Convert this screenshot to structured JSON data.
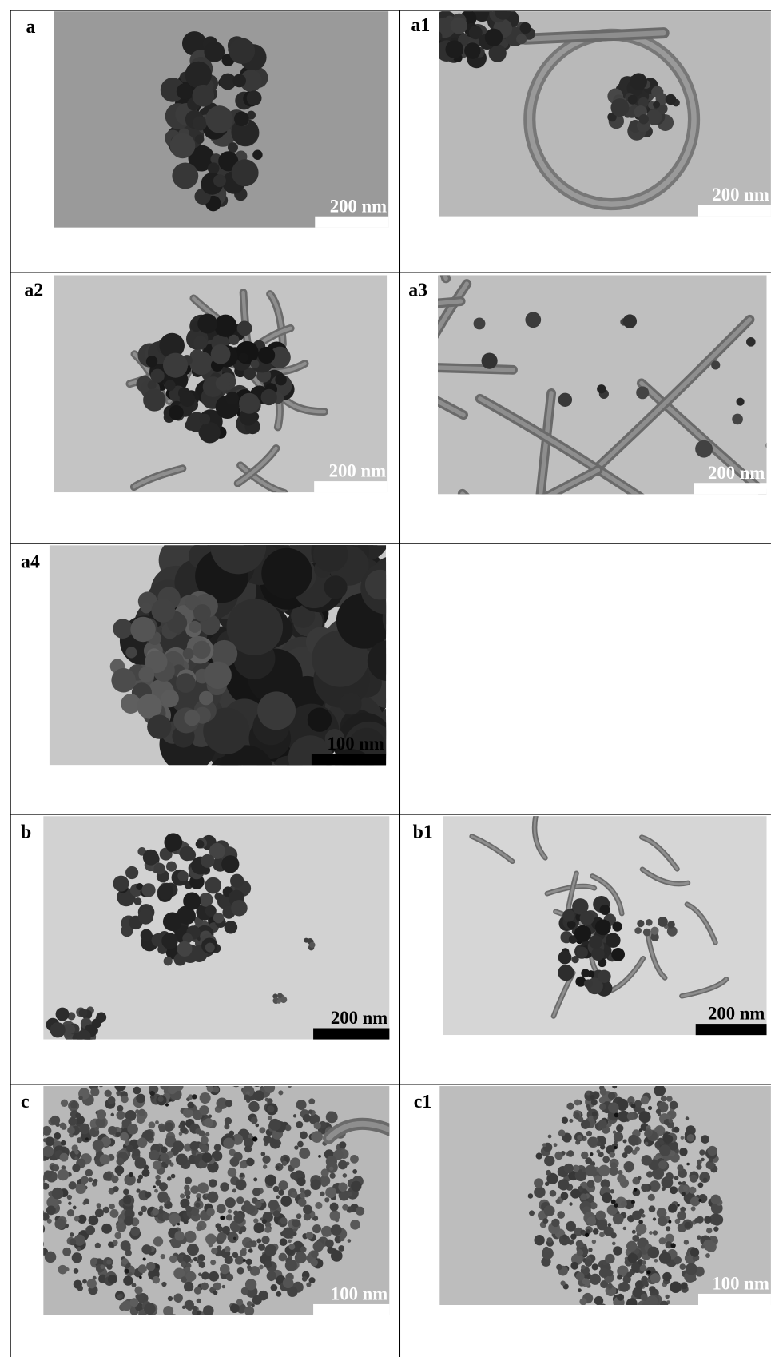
{
  "panels": [
    {
      "label": "a",
      "scale_bar": "200 nm"
    },
    {
      "label": "a1",
      "scale_bar": "200 nm"
    },
    {
      "label": "a2",
      "scale_bar": "200 nm"
    },
    {
      "label": "a3",
      "scale_bar": "200 nm"
    },
    {
      "label": "a4",
      "scale_bar": "100 nm"
    },
    {
      "label": "b",
      "scale_bar": "200 nm"
    },
    {
      "label": "b1",
      "scale_bar": "200 nm"
    },
    {
      "label": "c",
      "scale_bar": "100 nm"
    },
    {
      "label": "c1",
      "scale_bar": "100 nm"
    }
  ]
}
